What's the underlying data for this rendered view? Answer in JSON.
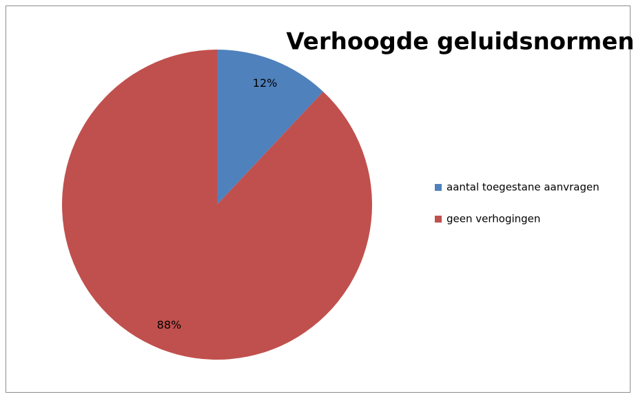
{
  "chart_data": {
    "type": "pie",
    "title": "Verhoogde geluidsnormen",
    "categories": [
      "aantal toegestane aanvragen",
      "geen verhogingen"
    ],
    "values": [
      12,
      88
    ],
    "value_labels": [
      "12%",
      "88%"
    ],
    "colors": [
      "#4f81bd",
      "#c0504d"
    ],
    "legend": "right"
  }
}
